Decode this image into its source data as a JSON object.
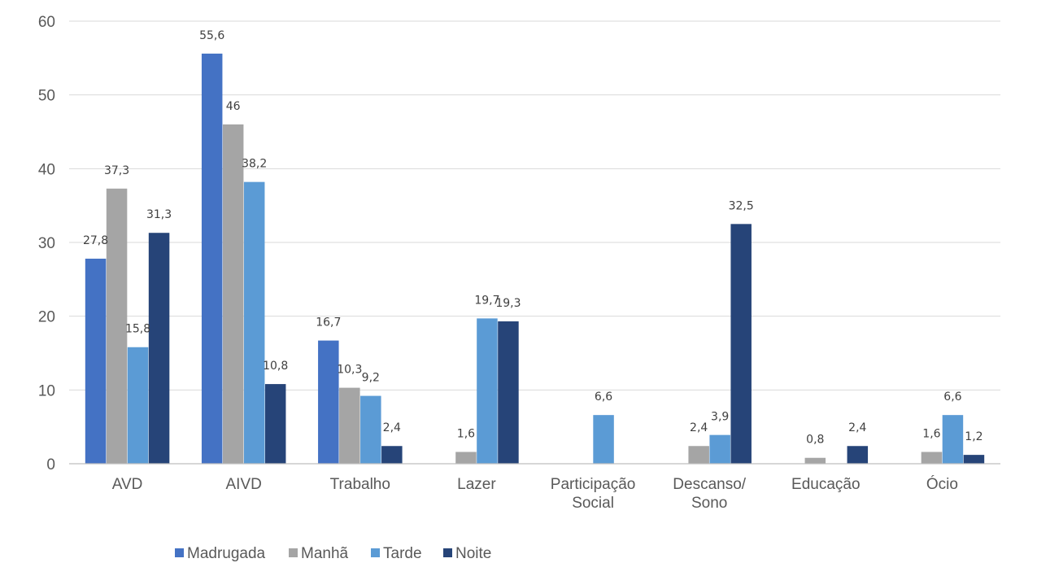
{
  "chart_data": {
    "type": "bar",
    "categories": [
      [
        "AVD"
      ],
      [
        "AIVD"
      ],
      [
        "Trabalho"
      ],
      [
        "Lazer"
      ],
      [
        "Participação",
        "Social"
      ],
      [
        "Descanso/",
        "Sono"
      ],
      [
        "Educação"
      ],
      [
        "Ócio"
      ]
    ],
    "series": [
      {
        "name": "Madrugada",
        "color": "#4472C4",
        "values": [
          27.8,
          55.6,
          16.7,
          null,
          null,
          null,
          null,
          null
        ],
        "labels": [
          "27,8",
          "55,6",
          "16,7",
          "",
          "",
          "",
          "",
          ""
        ]
      },
      {
        "name": "Manhã",
        "color": "#A5A5A5",
        "values": [
          37.3,
          46,
          10.3,
          1.6,
          null,
          2.4,
          0.8,
          1.6
        ],
        "labels": [
          "37,3",
          "46",
          "10,3",
          "1,6",
          "",
          "2,4",
          "0,8",
          "1,6"
        ]
      },
      {
        "name": "Tarde",
        "color": "#5B9BD5",
        "values": [
          15.8,
          38.2,
          9.2,
          19.7,
          6.6,
          3.9,
          null,
          6.6
        ],
        "labels": [
          "15,8",
          "38,2",
          "9,2",
          "19,7",
          "6,6",
          "3,9",
          "",
          "6,6"
        ]
      },
      {
        "name": "Noite",
        "color": "#264478",
        "values": [
          31.3,
          10.8,
          2.4,
          19.3,
          null,
          32.5,
          2.4,
          1.2
        ],
        "labels": [
          "31,3",
          "10,8",
          "2,4",
          "19,3",
          "",
          "32,5",
          "2,4",
          "1,2"
        ]
      }
    ],
    "yticks": [
      "0",
      "10",
      "20",
      "30",
      "40",
      "50",
      "60"
    ],
    "ylim": [
      0,
      60
    ],
    "grid": true,
    "legend_position": "bottom"
  }
}
